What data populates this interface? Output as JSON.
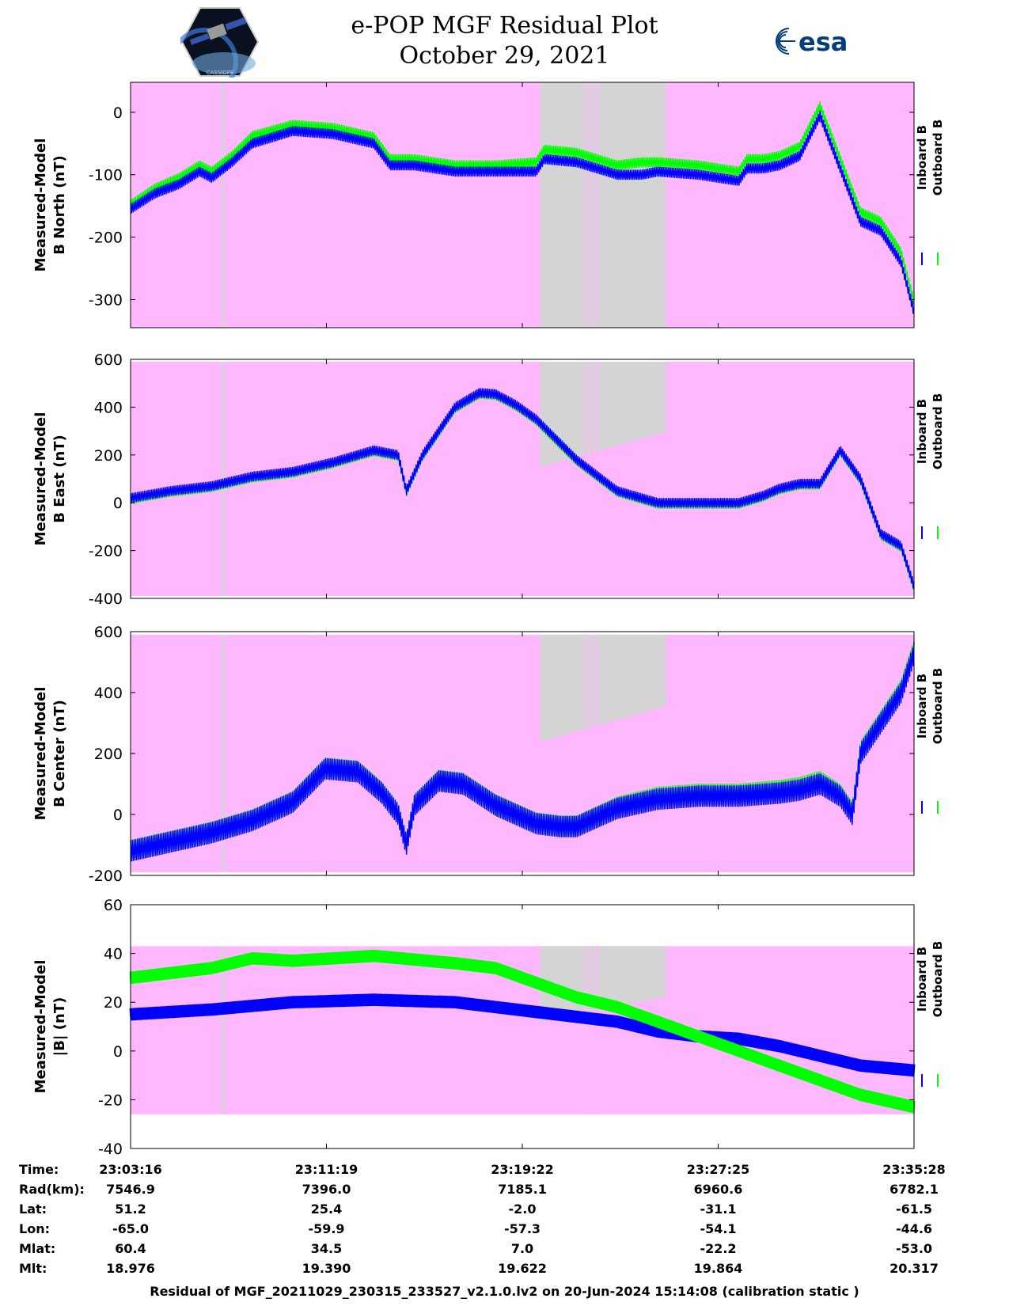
{
  "title": {
    "line1": "e-POP MGF Residual Plot",
    "line2": "October 29, 2021"
  },
  "logos": {
    "left_icon": "cassiope-satellite-logo",
    "right_icon": "esa-logo",
    "right_text": "esa",
    "left_caption": "CASSIOPE"
  },
  "colors": {
    "inboard": "#0000ff",
    "outboard": "#00ff00",
    "background_band": "#ffb8ff",
    "gap": "#d4d4d4"
  },
  "legend": {
    "inboard": "Inboard B",
    "outboard": "Outboard B"
  },
  "chart_data": [
    {
      "type": "line",
      "ylabel": [
        "Measured-Model",
        "B North (nT)"
      ],
      "ylim": [
        -345,
        48
      ],
      "yticks": [
        0,
        -100,
        -200,
        -300
      ],
      "x_range": [
        0,
        1932
      ],
      "band": [
        -345,
        48
      ],
      "series": [
        {
          "name": "Inboard B",
          "color": "#0000ff",
          "amp": 8,
          "x": [
            0,
            60,
            120,
            170,
            200,
            250,
            300,
            400,
            500,
            600,
            640,
            700,
            800,
            900,
            1000,
            1020,
            1100,
            1200,
            1260,
            1300,
            1400,
            1500,
            1520,
            1560,
            1600,
            1650,
            1700,
            1750,
            1800,
            1850,
            1900,
            1932
          ],
          "y": [
            -155,
            -130,
            -115,
            -95,
            -105,
            -80,
            -50,
            -30,
            -35,
            -50,
            -85,
            -85,
            -95,
            -95,
            -95,
            -75,
            -80,
            -100,
            -100,
            -95,
            -100,
            -110,
            -90,
            -90,
            -85,
            -70,
            -5,
            -90,
            -175,
            -190,
            -240,
            -320
          ]
        },
        {
          "name": "Outboard B",
          "color": "#00ff00",
          "amp": 8,
          "x": [
            0,
            60,
            120,
            170,
            200,
            250,
            300,
            400,
            500,
            600,
            640,
            700,
            800,
            900,
            1000,
            1020,
            1100,
            1200,
            1260,
            1300,
            1400,
            1500,
            1520,
            1560,
            1600,
            1650,
            1700,
            1750,
            1800,
            1850,
            1900,
            1932
          ],
          "y": [
            -148,
            -122,
            -105,
            -85,
            -95,
            -70,
            -38,
            -20,
            -25,
            -40,
            -75,
            -75,
            -85,
            -85,
            -80,
            -60,
            -65,
            -85,
            -80,
            -80,
            -85,
            -95,
            -75,
            -75,
            -70,
            -55,
            10,
            -75,
            -160,
            -175,
            -225,
            -305
          ]
        }
      ]
    },
    {
      "type": "line",
      "ylabel": [
        "Measured-Model",
        "B East (nT)"
      ],
      "ylim": [
        -400,
        600
      ],
      "yticks": [
        600,
        400,
        200,
        0,
        -200,
        -400
      ],
      "x_range": [
        0,
        1932
      ],
      "band": [
        -390,
        590
      ],
      "series": [
        {
          "name": "Inboard B",
          "color": "#0000ff",
          "amp": 20,
          "x": [
            0,
            100,
            200,
            300,
            400,
            500,
            600,
            660,
            680,
            720,
            800,
            860,
            900,
            950,
            1000,
            1100,
            1200,
            1300,
            1400,
            1500,
            1560,
            1600,
            1650,
            1700,
            1750,
            1800,
            1850,
            1900,
            1932
          ],
          "y": [
            20,
            50,
            70,
            110,
            130,
            170,
            220,
            200,
            50,
            200,
            400,
            460,
            455,
            410,
            350,
            180,
            50,
            0,
            0,
            0,
            30,
            60,
            80,
            80,
            220,
            100,
            -130,
            -180,
            -350
          ]
        },
        {
          "name": "Outboard B",
          "color": "#00ff00",
          "amp": 20,
          "x": [
            0,
            100,
            200,
            300,
            400,
            500,
            600,
            660,
            680,
            720,
            800,
            860,
            900,
            950,
            1000,
            1100,
            1200,
            1300,
            1400,
            1500,
            1560,
            1600,
            1650,
            1700,
            1750,
            1800,
            1850,
            1900,
            1932
          ],
          "y": [
            15,
            45,
            65,
            105,
            125,
            165,
            215,
            195,
            45,
            195,
            395,
            455,
            450,
            405,
            345,
            175,
            45,
            -5,
            -5,
            -5,
            25,
            55,
            75,
            75,
            215,
            95,
            -135,
            -185,
            -355
          ]
        }
      ]
    },
    {
      "type": "line",
      "ylabel": [
        "Measured-Model",
        "B Center (nT)"
      ],
      "ylim": [
        -200,
        600
      ],
      "yticks": [
        600,
        400,
        200,
        0,
        -200
      ],
      "x_range": [
        0,
        1932
      ],
      "band": [
        -190,
        590
      ],
      "series": [
        {
          "name": "Inboard B",
          "color": "#0000ff",
          "amp": 35,
          "x": [
            0,
            100,
            200,
            300,
            400,
            480,
            560,
            620,
            660,
            680,
            700,
            760,
            820,
            900,
            1000,
            1060,
            1100,
            1200,
            1300,
            1400,
            1500,
            1600,
            1650,
            1700,
            1750,
            1780,
            1800,
            1850,
            1900,
            1932
          ],
          "y": [
            -120,
            -90,
            -60,
            -20,
            40,
            150,
            140,
            70,
            0,
            -100,
            30,
            110,
            100,
            30,
            -30,
            -40,
            -40,
            20,
            50,
            60,
            60,
            70,
            80,
            100,
            60,
            0,
            200,
            300,
            400,
            530
          ]
        },
        {
          "name": "Outboard B",
          "color": "#00ff00",
          "amp": 35,
          "x": [
            0,
            100,
            200,
            300,
            400,
            480,
            560,
            620,
            660,
            680,
            700,
            760,
            820,
            900,
            1000,
            1060,
            1100,
            1200,
            1300,
            1400,
            1500,
            1600,
            1650,
            1700,
            1750,
            1780,
            1800,
            1850,
            1900,
            1932
          ],
          "y": [
            -118,
            -88,
            -58,
            -18,
            42,
            152,
            142,
            72,
            2,
            -98,
            32,
            112,
            102,
            32,
            -28,
            -38,
            -38,
            24,
            56,
            66,
            66,
            78,
            88,
            108,
            66,
            6,
            206,
            306,
            408,
            538
          ]
        }
      ]
    },
    {
      "type": "line",
      "ylabel": [
        "Measured-Model",
        "|B| (nT)"
      ],
      "ylim": [
        -40,
        60
      ],
      "yticks": [
        60,
        40,
        20,
        0,
        -20,
        -40
      ],
      "x_range": [
        0,
        1932
      ],
      "band": [
        -26,
        43
      ],
      "series": [
        {
          "name": "Inboard B",
          "color": "#0000ff",
          "amp": 2.5,
          "x": [
            0,
            200,
            400,
            600,
            800,
            1000,
            1200,
            1300,
            1400,
            1500,
            1600,
            1700,
            1800,
            1932
          ],
          "y": [
            15,
            17,
            20,
            21,
            20,
            16,
            12,
            8,
            6,
            5,
            2,
            -2,
            -6,
            -8
          ]
        },
        {
          "name": "Outboard B",
          "color": "#00ff00",
          "amp": 2.5,
          "x": [
            0,
            200,
            300,
            400,
            500,
            600,
            800,
            900,
            1000,
            1100,
            1200,
            1300,
            1400,
            1500,
            1600,
            1700,
            1800,
            1932
          ],
          "y": [
            30,
            34,
            38,
            37,
            38,
            39,
            36,
            34,
            28,
            22,
            18,
            12,
            6,
            0,
            -6,
            -12,
            -18,
            -23
          ]
        }
      ]
    }
  ],
  "axis_ticks": {
    "x_seconds": [
      0,
      483,
      966,
      1449,
      1932
    ]
  },
  "ephemeris": {
    "labels": [
      "Time:",
      "Rad(km):",
      "Lat:",
      "Lon:",
      "Mlat:",
      "Mlt:"
    ],
    "columns": [
      [
        "23:03:16",
        "7546.9",
        "51.2",
        "-65.0",
        "60.4",
        "18.976"
      ],
      [
        "23:11:19",
        "7396.0",
        "25.4",
        "-59.9",
        "34.5",
        "19.390"
      ],
      [
        "23:19:22",
        "7185.1",
        "-2.0",
        "-57.3",
        "7.0",
        "19.622"
      ],
      [
        "23:27:25",
        "6960.6",
        "-31.1",
        "-54.1",
        "-22.2",
        "19.864"
      ],
      [
        "23:35:28",
        "6782.1",
        "-61.5",
        "-44.6",
        "-53.0",
        "20.317"
      ]
    ]
  },
  "footer": "Residual of MGF_20211029_230315_233527_v2.1.0.lv2 on 20-Jun-2024 15:14:08 (calibration static )"
}
